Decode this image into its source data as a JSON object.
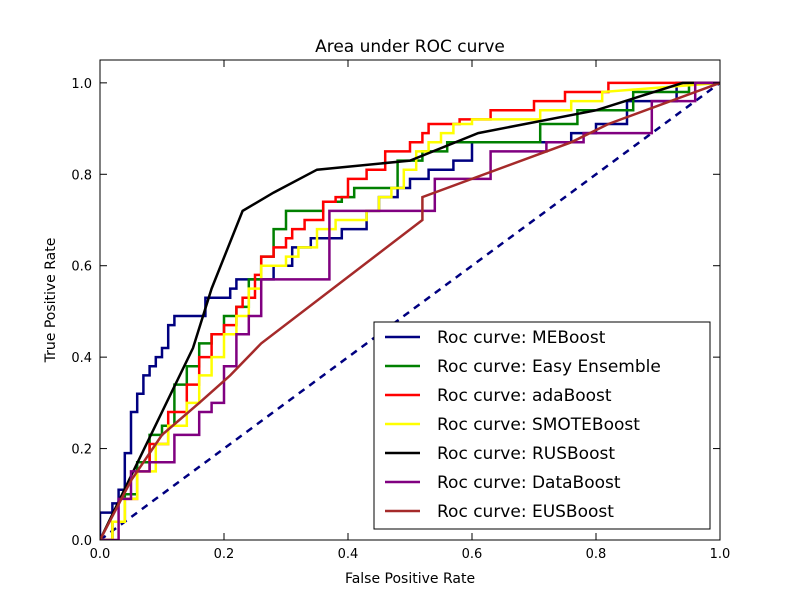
{
  "chart_data": {
    "type": "line",
    "title": "Area under ROC curve",
    "xlabel": "False Positive Rate",
    "ylabel": "True Positive Rate",
    "xlim": [
      0.0,
      1.0
    ],
    "ylim": [
      0.0,
      1.05
    ],
    "xticks": [
      "0.0",
      "0.2",
      "0.4",
      "0.6",
      "0.8",
      "1.0"
    ],
    "yticks": [
      "0.0",
      "0.2",
      "0.4",
      "0.6",
      "0.8",
      "1.0"
    ],
    "xtick_values": [
      0.0,
      0.2,
      0.4,
      0.6,
      0.8,
      1.0
    ],
    "ytick_values": [
      0.0,
      0.2,
      0.4,
      0.6,
      0.8,
      1.0
    ],
    "legend_position": "lower-right",
    "diagonal": {
      "x": [
        0,
        1
      ],
      "y": [
        0,
        1
      ],
      "color": "#000080",
      "style": "dashed"
    },
    "series": [
      {
        "name": "Roc curve: MEBoost",
        "color": "#000080",
        "x": [
          0.0,
          0.0,
          0.02,
          0.02,
          0.03,
          0.03,
          0.04,
          0.04,
          0.05,
          0.05,
          0.06,
          0.06,
          0.07,
          0.07,
          0.08,
          0.08,
          0.09,
          0.09,
          0.1,
          0.1,
          0.11,
          0.11,
          0.12,
          0.12,
          0.13,
          0.13,
          0.17,
          0.17,
          0.21,
          0.21,
          0.22,
          0.22,
          0.28,
          0.28,
          0.31,
          0.31,
          0.34,
          0.34,
          0.39,
          0.39,
          0.43,
          0.43,
          0.45,
          0.45,
          0.48,
          0.48,
          0.5,
          0.5,
          0.53,
          0.53,
          0.57,
          0.57,
          0.6,
          0.6,
          0.76,
          0.76,
          0.8,
          0.8,
          0.85,
          0.85,
          0.93,
          0.93,
          1.0
        ],
        "y": [
          0.0,
          0.06,
          0.06,
          0.08,
          0.08,
          0.11,
          0.11,
          0.19,
          0.19,
          0.28,
          0.28,
          0.32,
          0.32,
          0.36,
          0.36,
          0.38,
          0.38,
          0.4,
          0.4,
          0.42,
          0.42,
          0.47,
          0.47,
          0.49,
          0.49,
          0.49,
          0.49,
          0.53,
          0.53,
          0.55,
          0.55,
          0.57,
          0.57,
          0.6,
          0.6,
          0.64,
          0.64,
          0.66,
          0.66,
          0.68,
          0.68,
          0.72,
          0.72,
          0.75,
          0.75,
          0.77,
          0.77,
          0.79,
          0.79,
          0.81,
          0.81,
          0.83,
          0.83,
          0.87,
          0.87,
          0.89,
          0.89,
          0.91,
          0.91,
          0.96,
          0.96,
          1.0,
          1.0
        ]
      },
      {
        "name": "Roc curve: Easy Ensemble",
        "color": "#008000",
        "x": [
          0.0,
          0.02,
          0.02,
          0.04,
          0.04,
          0.06,
          0.06,
          0.08,
          0.08,
          0.1,
          0.1,
          0.12,
          0.12,
          0.14,
          0.14,
          0.16,
          0.16,
          0.18,
          0.18,
          0.2,
          0.2,
          0.22,
          0.22,
          0.24,
          0.24,
          0.26,
          0.26,
          0.28,
          0.28,
          0.3,
          0.3,
          0.36,
          0.36,
          0.39,
          0.39,
          0.41,
          0.41,
          0.48,
          0.48,
          0.52,
          0.52,
          0.56,
          0.56,
          0.71,
          0.71,
          0.77,
          0.77,
          0.86,
          0.86,
          0.95,
          0.95,
          1.0
        ],
        "y": [
          0.0,
          0.0,
          0.04,
          0.04,
          0.1,
          0.1,
          0.17,
          0.17,
          0.23,
          0.23,
          0.25,
          0.25,
          0.34,
          0.34,
          0.38,
          0.38,
          0.43,
          0.43,
          0.45,
          0.45,
          0.49,
          0.49,
          0.51,
          0.51,
          0.57,
          0.57,
          0.62,
          0.62,
          0.68,
          0.68,
          0.72,
          0.72,
          0.74,
          0.74,
          0.75,
          0.75,
          0.77,
          0.77,
          0.83,
          0.83,
          0.85,
          0.85,
          0.87,
          0.87,
          0.91,
          0.91,
          0.94,
          0.94,
          0.98,
          0.98,
          1.0,
          1.0
        ]
      },
      {
        "name": "Roc curve: adaBoost",
        "color": "#ff0000",
        "x": [
          0.0,
          0.02,
          0.02,
          0.04,
          0.04,
          0.06,
          0.06,
          0.08,
          0.08,
          0.11,
          0.11,
          0.14,
          0.14,
          0.16,
          0.16,
          0.18,
          0.18,
          0.2,
          0.2,
          0.22,
          0.22,
          0.23,
          0.23,
          0.25,
          0.25,
          0.26,
          0.26,
          0.28,
          0.28,
          0.3,
          0.3,
          0.31,
          0.31,
          0.33,
          0.33,
          0.36,
          0.36,
          0.38,
          0.38,
          0.4,
          0.4,
          0.43,
          0.43,
          0.46,
          0.46,
          0.5,
          0.5,
          0.52,
          0.52,
          0.53,
          0.53,
          0.58,
          0.58,
          0.63,
          0.63,
          0.7,
          0.7,
          0.75,
          0.75,
          0.82,
          0.82,
          0.9,
          0.9,
          1.0
        ],
        "y": [
          0.0,
          0.0,
          0.04,
          0.04,
          0.09,
          0.09,
          0.15,
          0.15,
          0.21,
          0.21,
          0.28,
          0.28,
          0.34,
          0.34,
          0.4,
          0.4,
          0.45,
          0.45,
          0.47,
          0.47,
          0.51,
          0.51,
          0.53,
          0.53,
          0.58,
          0.58,
          0.62,
          0.62,
          0.64,
          0.64,
          0.66,
          0.66,
          0.68,
          0.68,
          0.7,
          0.7,
          0.74,
          0.74,
          0.75,
          0.75,
          0.79,
          0.79,
          0.81,
          0.81,
          0.85,
          0.85,
          0.87,
          0.87,
          0.89,
          0.89,
          0.91,
          0.91,
          0.92,
          0.92,
          0.94,
          0.94,
          0.96,
          0.96,
          0.98,
          0.98,
          1.0,
          1.0,
          1.0,
          1.0
        ]
      },
      {
        "name": "Roc curve: SMOTEBoost",
        "color": "#ffff00",
        "x": [
          0.0,
          0.02,
          0.02,
          0.04,
          0.04,
          0.06,
          0.06,
          0.09,
          0.09,
          0.11,
          0.11,
          0.14,
          0.14,
          0.16,
          0.16,
          0.18,
          0.18,
          0.2,
          0.2,
          0.22,
          0.22,
          0.24,
          0.24,
          0.26,
          0.26,
          0.3,
          0.3,
          0.32,
          0.32,
          0.35,
          0.35,
          0.38,
          0.38,
          0.43,
          0.43,
          0.45,
          0.45,
          0.47,
          0.47,
          0.49,
          0.49,
          0.51,
          0.51,
          0.53,
          0.53,
          0.55,
          0.55,
          0.57,
          0.57,
          0.6,
          0.6,
          0.71,
          0.71,
          0.76,
          0.76,
          0.81,
          0.81,
          1.0
        ],
        "y": [
          0.0,
          0.0,
          0.04,
          0.04,
          0.09,
          0.09,
          0.15,
          0.15,
          0.21,
          0.21,
          0.25,
          0.25,
          0.3,
          0.3,
          0.36,
          0.36,
          0.4,
          0.4,
          0.45,
          0.45,
          0.49,
          0.49,
          0.55,
          0.55,
          0.6,
          0.6,
          0.62,
          0.62,
          0.64,
          0.64,
          0.68,
          0.68,
          0.7,
          0.7,
          0.72,
          0.72,
          0.75,
          0.75,
          0.77,
          0.77,
          0.81,
          0.81,
          0.85,
          0.85,
          0.87,
          0.87,
          0.89,
          0.89,
          0.91,
          0.91,
          0.92,
          0.92,
          0.94,
          0.94,
          0.96,
          0.96,
          0.98,
          1.0
        ]
      },
      {
        "name": "Roc curve: RUSBoost",
        "color": "#000000",
        "x": [
          0.0,
          0.15,
          0.18,
          0.23,
          0.28,
          0.35,
          0.5,
          0.61,
          0.8,
          0.94,
          1.0
        ],
        "y": [
          0.0,
          0.42,
          0.55,
          0.72,
          0.76,
          0.81,
          0.83,
          0.89,
          0.94,
          1.0,
          1.0
        ],
        "smooth": true
      },
      {
        "name": "Roc curve: DataBoost",
        "color": "#800080",
        "x": [
          0.0,
          0.03,
          0.03,
          0.05,
          0.05,
          0.08,
          0.08,
          0.12,
          0.12,
          0.16,
          0.16,
          0.18,
          0.18,
          0.2,
          0.2,
          0.22,
          0.22,
          0.24,
          0.24,
          0.26,
          0.26,
          0.29,
          0.29,
          0.37,
          0.37,
          0.44,
          0.44,
          0.54,
          0.54,
          0.63,
          0.63,
          0.72,
          0.72,
          0.78,
          0.78,
          0.83,
          0.83,
          0.89,
          0.89,
          0.96,
          0.96,
          1.0
        ],
        "y": [
          0.0,
          0.0,
          0.09,
          0.09,
          0.15,
          0.15,
          0.17,
          0.17,
          0.23,
          0.23,
          0.28,
          0.28,
          0.3,
          0.3,
          0.38,
          0.38,
          0.45,
          0.45,
          0.49,
          0.49,
          0.57,
          0.57,
          0.57,
          0.57,
          0.72,
          0.72,
          0.72,
          0.72,
          0.79,
          0.79,
          0.85,
          0.85,
          0.87,
          0.87,
          0.89,
          0.89,
          0.89,
          0.89,
          0.96,
          0.96,
          1.0,
          1.0
        ]
      },
      {
        "name": "Roc curve: EUSBoost",
        "color": "#a52a2a",
        "x": [
          0.0,
          0.05,
          0.1,
          0.16,
          0.21,
          0.26,
          0.52,
          0.52,
          0.76,
          0.82,
          1.0
        ],
        "y": [
          0.0,
          0.13,
          0.23,
          0.3,
          0.36,
          0.43,
          0.7,
          0.75,
          0.87,
          0.91,
          1.0
        ]
      }
    ]
  }
}
